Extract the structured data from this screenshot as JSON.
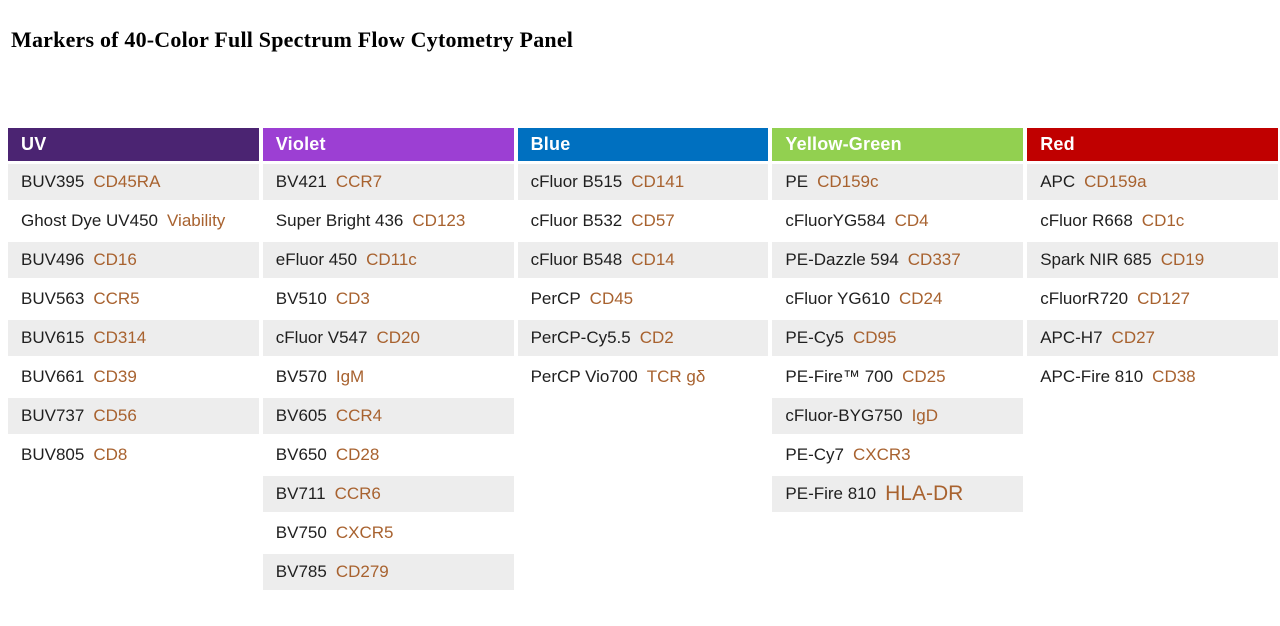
{
  "title": "Markers of 40-Color Full Spectrum Flow Cytometry Panel",
  "colors": {
    "row_alt": "#EDEDED",
    "fluor_text": "#1F1F1F",
    "marker_text": "#A8622F"
  },
  "table": {
    "columns": [
      {
        "label": "UV",
        "header_color": "#4B2472",
        "rows": [
          {
            "fluorophore": "BUV395",
            "marker": "CD45RA"
          },
          {
            "fluorophore": "Ghost Dye UV450",
            "marker": "Viability"
          },
          {
            "fluorophore": "BUV496",
            "marker": "CD16"
          },
          {
            "fluorophore": "BUV563",
            "marker": "CCR5"
          },
          {
            "fluorophore": "BUV615",
            "marker": "CD314"
          },
          {
            "fluorophore": "BUV661",
            "marker": "CD39"
          },
          {
            "fluorophore": "BUV737",
            "marker": "CD56"
          },
          {
            "fluorophore": "BUV805",
            "marker": "CD8"
          }
        ]
      },
      {
        "label": "Violet",
        "header_color": "#9C3FD3",
        "rows": [
          {
            "fluorophore": "BV421",
            "marker": "CCR7"
          },
          {
            "fluorophore": "Super Bright 436",
            "marker": "CD123"
          },
          {
            "fluorophore": "eFluor 450",
            "marker": "CD11c"
          },
          {
            "fluorophore": "BV510",
            "marker": "CD3"
          },
          {
            "fluorophore": "cFluor V547",
            "marker": "CD20"
          },
          {
            "fluorophore": "BV570",
            "marker": "IgM"
          },
          {
            "fluorophore": "BV605",
            "marker": "CCR4"
          },
          {
            "fluorophore": "BV650",
            "marker": "CD28"
          },
          {
            "fluorophore": "BV711",
            "marker": "CCR6"
          },
          {
            "fluorophore": "BV750",
            "marker": "CXCR5"
          },
          {
            "fluorophore": "BV785",
            "marker": "CD279"
          }
        ]
      },
      {
        "label": "Blue",
        "header_color": "#0070C0",
        "rows": [
          {
            "fluorophore": "cFluor B515",
            "marker": "CD141"
          },
          {
            "fluorophore": "cFluor B532",
            "marker": "CD57"
          },
          {
            "fluorophore": "cFluor B548",
            "marker": "CD14"
          },
          {
            "fluorophore": "PerCP",
            "marker": "CD45"
          },
          {
            "fluorophore": "PerCP-Cy5.5",
            "marker": "CD2"
          },
          {
            "fluorophore": "PerCP Vio700",
            "marker": "TCR gδ"
          }
        ]
      },
      {
        "label": "Yellow-Green",
        "header_color": "#92D050",
        "rows": [
          {
            "fluorophore": "PE",
            "marker": "CD159c"
          },
          {
            "fluorophore": "cFluorYG584",
            "marker": "CD4"
          },
          {
            "fluorophore": "PE-Dazzle 594",
            "marker": "CD337"
          },
          {
            "fluorophore": "cFluor YG610",
            "marker": "CD24"
          },
          {
            "fluorophore": "PE-Cy5",
            "marker": "CD95"
          },
          {
            "fluorophore": "PE-Fire™ 700",
            "marker": "CD25"
          },
          {
            "fluorophore": "cFluor-BYG750",
            "marker": "IgD"
          },
          {
            "fluorophore": "PE-Cy7",
            "marker": "CXCR3"
          },
          {
            "fluorophore": "PE-Fire 810",
            "marker": "HLA-DR",
            "marker_large": true
          }
        ]
      },
      {
        "label": "Red",
        "header_color": "#C00000",
        "rows": [
          {
            "fluorophore": "APC",
            "marker": "CD159a"
          },
          {
            "fluorophore": "cFluor R668",
            "marker": "CD1c"
          },
          {
            "fluorophore": "Spark NIR 685",
            "marker": "CD19"
          },
          {
            "fluorophore": "cFluorR720",
            "marker": "CD127"
          },
          {
            "fluorophore": "APC-H7",
            "marker": "CD27"
          },
          {
            "fluorophore": "APC-Fire 810",
            "marker": "CD38"
          }
        ]
      }
    ]
  }
}
